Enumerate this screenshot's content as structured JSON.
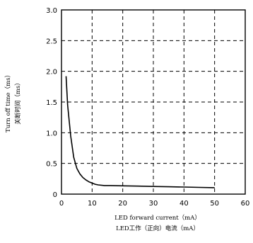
{
  "chart_data": {
    "type": "line",
    "xlabel": "LED forward current（mA）",
    "xlabel_cn": "LED工作（正向）电流（mA）",
    "ylabel": "Turn off time（ms）",
    "ylabel_cn": "关断时间（ms）",
    "xlim": [
      0,
      60
    ],
    "ylim": [
      0,
      3.0
    ],
    "xticks": [
      "0",
      "10",
      "20",
      "30",
      "40",
      "50",
      "60"
    ],
    "yticks": [
      "0",
      "0.5",
      "1.0",
      "1.5",
      "2.0",
      "2.5",
      "3.0"
    ],
    "grid": true,
    "series": [
      {
        "x": [
          1.5,
          2,
          3,
          4,
          5,
          6,
          7,
          8,
          9,
          10,
          11,
          12,
          14,
          16,
          20,
          25,
          30,
          35,
          40,
          45,
          50
        ],
        "y": [
          1.92,
          1.45,
          0.95,
          0.6,
          0.42,
          0.33,
          0.27,
          0.23,
          0.2,
          0.18,
          0.16,
          0.15,
          0.14,
          0.14,
          0.135,
          0.13,
          0.125,
          0.12,
          0.115,
          0.11,
          0.105
        ]
      }
    ]
  }
}
